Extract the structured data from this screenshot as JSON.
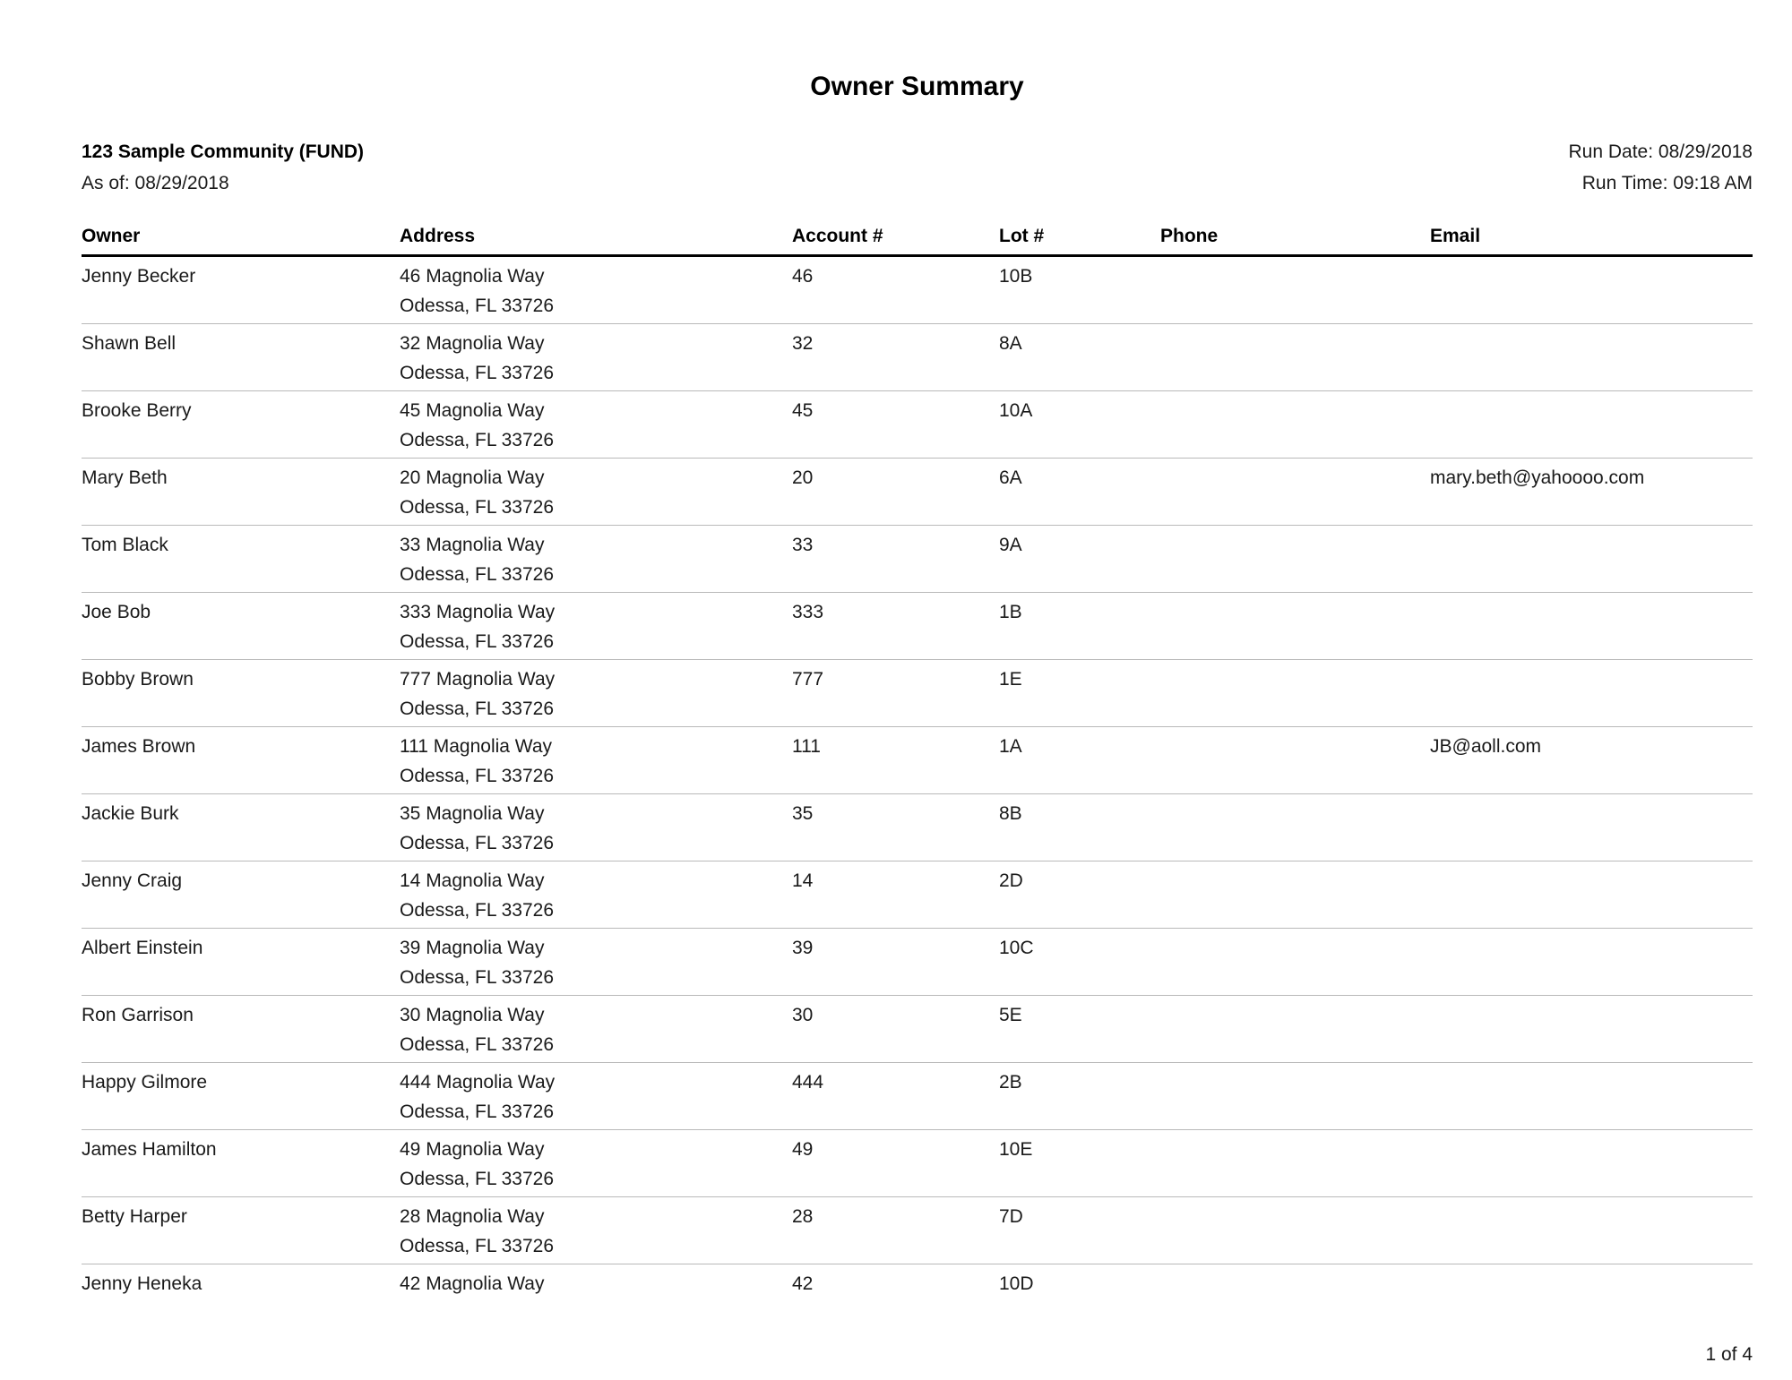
{
  "report": {
    "title": "Owner Summary",
    "community": "123 Sample Community (FUND)",
    "as_of": "As of: 08/29/2018",
    "run_date": "Run Date: 08/29/2018",
    "run_time": "Run Time: 09:18 AM",
    "page_number": "1 of 4"
  },
  "table": {
    "columns": [
      "Owner",
      "Address",
      "Account #",
      "Lot #",
      "Phone",
      "Email"
    ],
    "rows": [
      {
        "owner": "Jenny Becker",
        "address1": "46 Magnolia Way",
        "address2": "Odessa, FL 33726",
        "account": "46",
        "lot": "10B",
        "phone": "",
        "email": ""
      },
      {
        "owner": "Shawn Bell",
        "address1": "32 Magnolia Way",
        "address2": "Odessa, FL 33726",
        "account": "32",
        "lot": "8A",
        "phone": "",
        "email": ""
      },
      {
        "owner": "Brooke Berry",
        "address1": "45 Magnolia Way",
        "address2": "Odessa, FL 33726",
        "account": "45",
        "lot": "10A",
        "phone": "",
        "email": ""
      },
      {
        "owner": "Mary Beth",
        "address1": "20 Magnolia Way",
        "address2": "Odessa, FL 33726",
        "account": "20",
        "lot": "6A",
        "phone": "",
        "email": "mary.beth@yahoooo.com"
      },
      {
        "owner": "Tom Black",
        "address1": "33 Magnolia Way",
        "address2": "Odessa, FL 33726",
        "account": "33",
        "lot": "9A",
        "phone": "",
        "email": ""
      },
      {
        "owner": "Joe Bob",
        "address1": "333 Magnolia Way",
        "address2": "Odessa, FL 33726",
        "account": "333",
        "lot": "1B",
        "phone": "",
        "email": ""
      },
      {
        "owner": "Bobby Brown",
        "address1": "777 Magnolia Way",
        "address2": "Odessa, FL 33726",
        "account": "777",
        "lot": "1E",
        "phone": "",
        "email": ""
      },
      {
        "owner": "James Brown",
        "address1": "111 Magnolia Way",
        "address2": "Odessa, FL 33726",
        "account": "111",
        "lot": "1A",
        "phone": "",
        "email": "JB@aoll.com"
      },
      {
        "owner": "Jackie Burk",
        "address1": "35 Magnolia Way",
        "address2": "Odessa, FL 33726",
        "account": "35",
        "lot": "8B",
        "phone": "",
        "email": ""
      },
      {
        "owner": "Jenny Craig",
        "address1": "14 Magnolia Way",
        "address2": "Odessa, FL 33726",
        "account": "14",
        "lot": "2D",
        "phone": "",
        "email": ""
      },
      {
        "owner": "Albert Einstein",
        "address1": "39 Magnolia Way",
        "address2": "Odessa, FL 33726",
        "account": "39",
        "lot": "10C",
        "phone": "",
        "email": ""
      },
      {
        "owner": "Ron Garrison",
        "address1": "30 Magnolia Way",
        "address2": "Odessa, FL 33726",
        "account": "30",
        "lot": "5E",
        "phone": "",
        "email": ""
      },
      {
        "owner": "Happy Gilmore",
        "address1": "444 Magnolia Way",
        "address2": "Odessa, FL 33726",
        "account": "444",
        "lot": "2B",
        "phone": "",
        "email": ""
      },
      {
        "owner": "James Hamilton",
        "address1": "49 Magnolia Way",
        "address2": "Odessa, FL 33726",
        "account": "49",
        "lot": "10E",
        "phone": "",
        "email": ""
      },
      {
        "owner": "Betty Harper",
        "address1": "28 Magnolia Way",
        "address2": "Odessa, FL 33726",
        "account": "28",
        "lot": "7D",
        "phone": "",
        "email": ""
      },
      {
        "owner": "Jenny Heneka",
        "address1": "42 Magnolia Way",
        "address2": "",
        "account": "42",
        "lot": "10D",
        "phone": "",
        "email": ""
      }
    ]
  }
}
